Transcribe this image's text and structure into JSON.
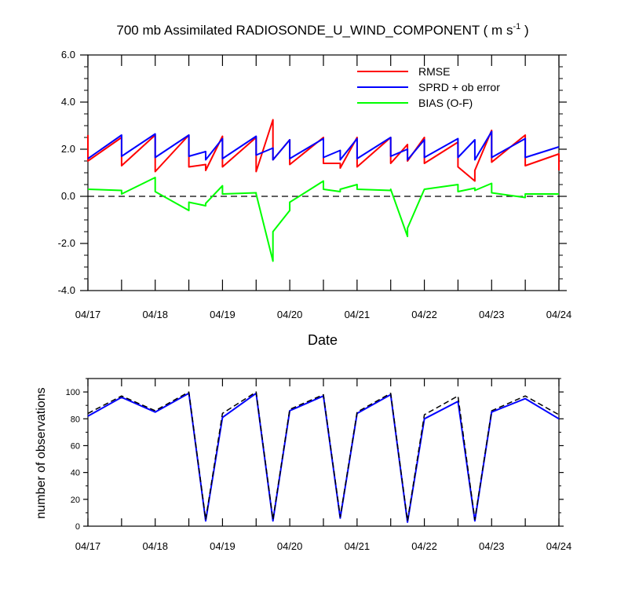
{
  "chart_data": [
    {
      "type": "line",
      "title": "700 mb Assimilated RADIOSONDE_U_WIND_COMPONENT ( m s",
      "title_sup": "-1",
      "title_close": " )",
      "xlabel": "Date",
      "ylabel": "",
      "xlim": [
        0,
        7
      ],
      "ylim": [
        -4.0,
        6.0
      ],
      "x_ticks": [
        0,
        1,
        2,
        3,
        4,
        5,
        6,
        7
      ],
      "x_tick_labels": [
        "04/17",
        "04/18",
        "04/19",
        "04/20",
        "04/21",
        "04/22",
        "04/23",
        "04/24"
      ],
      "y_ticks": [
        -4,
        -2,
        0,
        2,
        4,
        6
      ],
      "y_tick_labels": [
        "-4.0",
        "-2.0",
        "0.0",
        "2.0",
        "4.0",
        "6.0"
      ],
      "zero_line": "dashed",
      "legend_position": "top-right",
      "series": [
        {
          "name": "RMSE",
          "color": "#ff0000",
          "x": [
            0,
            0,
            0.5,
            0.5,
            1.0,
            1.0,
            1.5,
            1.5,
            1.75,
            1.75,
            2.0,
            2.0,
            2.5,
            2.5,
            2.75,
            2.75,
            3.0,
            3.0,
            3.5,
            3.5,
            3.75,
            3.75,
            4.0,
            4.0,
            4.5,
            4.5,
            4.75,
            4.75,
            5.0,
            5.0,
            5.5,
            5.5,
            5.75,
            5.75,
            6.0,
            6.0,
            6.5,
            6.5,
            7.0,
            7.0
          ],
          "y": [
            2.6,
            1.5,
            2.5,
            1.3,
            2.6,
            1.05,
            2.6,
            1.25,
            1.35,
            1.1,
            2.55,
            1.25,
            2.5,
            1.05,
            3.25,
            1.55,
            2.4,
            1.35,
            2.5,
            1.4,
            1.4,
            1.2,
            2.5,
            1.25,
            2.5,
            1.4,
            2.2,
            1.5,
            2.5,
            1.4,
            2.3,
            1.25,
            0.65,
            1.1,
            2.8,
            1.45,
            2.6,
            1.3,
            1.8,
            1.1
          ]
        },
        {
          "name": "SPRD + ob error",
          "color": "#0000ff",
          "x": [
            0,
            0.5,
            0.5,
            1.0,
            1.0,
            1.5,
            1.5,
            1.75,
            1.75,
            2.0,
            2.0,
            2.5,
            2.5,
            2.75,
            2.75,
            3.0,
            3.0,
            3.5,
            3.5,
            3.75,
            3.75,
            4.0,
            4.0,
            4.5,
            4.5,
            4.75,
            4.75,
            5.0,
            5.0,
            5.5,
            5.5,
            5.75,
            5.75,
            6.0,
            6.0,
            6.5,
            6.5,
            7.0
          ],
          "y": [
            1.6,
            2.6,
            1.7,
            2.65,
            1.65,
            2.6,
            1.7,
            1.9,
            1.55,
            2.45,
            1.6,
            2.55,
            1.75,
            2.05,
            1.55,
            2.4,
            1.6,
            2.45,
            1.65,
            1.95,
            1.55,
            2.45,
            1.6,
            2.5,
            1.7,
            2.0,
            1.55,
            2.4,
            1.65,
            2.45,
            1.65,
            2.4,
            1.55,
            2.75,
            1.65,
            2.45,
            1.65,
            2.1
          ]
        },
        {
          "name": "BIAS (O-F)",
          "color": "#00ff00",
          "x": [
            0,
            0.5,
            0.5,
            1.0,
            1.0,
            1.5,
            1.5,
            1.75,
            1.75,
            2.0,
            2.0,
            2.5,
            2.5,
            2.75,
            2.75,
            3.0,
            3.0,
            3.5,
            3.5,
            3.75,
            3.75,
            4.0,
            4.0,
            4.5,
            4.5,
            4.75,
            4.75,
            5.0,
            5.0,
            5.5,
            5.5,
            5.75,
            5.75,
            6.0,
            6.0,
            6.5,
            6.5,
            7.0
          ],
          "y": [
            0.3,
            0.25,
            0.1,
            0.8,
            0.2,
            -0.6,
            -0.25,
            -0.4,
            -0.3,
            0.45,
            0.1,
            0.15,
            0.1,
            -2.75,
            -1.5,
            -0.6,
            -0.25,
            0.65,
            0.3,
            0.2,
            0.3,
            0.5,
            0.3,
            0.25,
            0.3,
            -1.7,
            -1.35,
            0.3,
            0.3,
            0.5,
            0.2,
            0.35,
            0.25,
            0.55,
            0.15,
            -0.05,
            0.1,
            0.1
          ]
        }
      ]
    },
    {
      "type": "line",
      "title": "",
      "xlabel": "",
      "ylabel": "number of observations",
      "xlim": [
        0,
        7
      ],
      "ylim": [
        0,
        110
      ],
      "x_ticks": [
        0,
        1,
        2,
        3,
        4,
        5,
        6,
        7
      ],
      "x_tick_labels": [
        "04/17",
        "04/18",
        "04/19",
        "04/20",
        "04/21",
        "04/22",
        "04/23",
        "04/24"
      ],
      "y_ticks": [
        0,
        20,
        40,
        60,
        80,
        100
      ],
      "y_tick_labels": [
        "0",
        "20",
        "40",
        "60",
        "80",
        "100"
      ],
      "series": [
        {
          "color": "#0000ff",
          "dash": "solid",
          "x": [
            0,
            0.5,
            1.0,
            1.5,
            1.75,
            2.0,
            2.5,
            2.75,
            3.0,
            3.5,
            3.75,
            4.0,
            4.5,
            4.75,
            5.0,
            5.5,
            5.75,
            6.0,
            6.5,
            7.0
          ],
          "y": [
            82,
            96,
            85,
            99,
            4,
            81,
            99,
            4,
            86,
            97,
            6,
            84,
            98,
            3,
            80,
            93,
            4,
            85,
            95,
            80
          ]
        },
        {
          "color": "#000000",
          "dash": "dashed",
          "x": [
            0,
            0.5,
            1.0,
            1.5,
            1.75,
            2.0,
            2.5,
            2.75,
            3.0,
            3.5,
            3.75,
            4.0,
            4.5,
            4.75,
            5.0,
            5.5,
            5.75,
            6.0,
            6.5,
            7.0
          ],
          "y": [
            84,
            97,
            86,
            100,
            5,
            84,
            100,
            5,
            87,
            98,
            7,
            85,
            99,
            4,
            83,
            97,
            5,
            86,
            97,
            83
          ]
        }
      ]
    }
  ]
}
